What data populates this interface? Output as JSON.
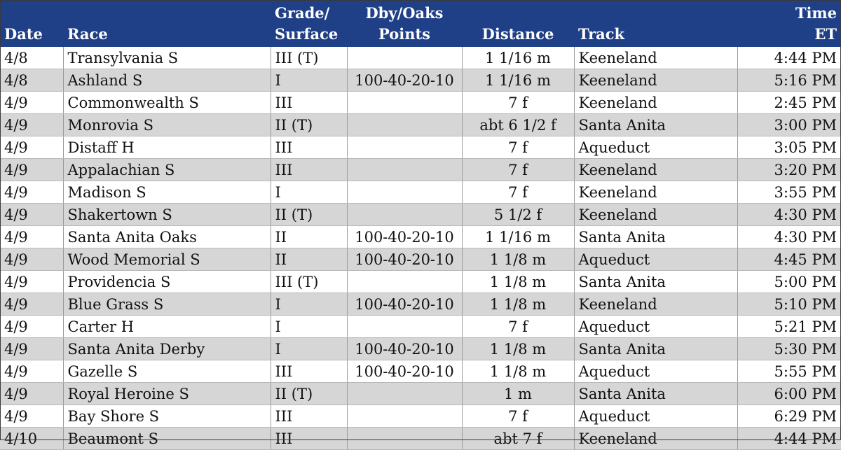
{
  "headers": {
    "date": "Date",
    "race": "Race",
    "grade_line1": "Grade/",
    "grade_line2": "Surface",
    "points_line1": "Dby/Oaks",
    "points_line2": "Points",
    "distance": "Distance",
    "track": "Track",
    "time_line1": "Time",
    "time_line2": "ET"
  },
  "rows": [
    {
      "date": "4/8",
      "race": "Transylvania S",
      "grade": "III (T)",
      "points": "",
      "distance": "1 1/16 m",
      "track": "Keeneland",
      "time": "4:44 PM"
    },
    {
      "date": "4/8",
      "race": "Ashland S",
      "grade": "I",
      "points": "100-40-20-10",
      "distance": "1 1/16 m",
      "track": "Keeneland",
      "time": "5:16 PM"
    },
    {
      "date": "4/9",
      "race": "Commonwealth S",
      "grade": "III",
      "points": "",
      "distance": "7 f",
      "track": "Keeneland",
      "time": "2:45 PM"
    },
    {
      "date": "4/9",
      "race": "Monrovia S",
      "grade": "II (T)",
      "points": "",
      "distance": "abt 6 1/2 f",
      "track": "Santa Anita",
      "time": "3:00 PM"
    },
    {
      "date": "4/9",
      "race": "Distaff H",
      "grade": "III",
      "points": "",
      "distance": "7 f",
      "track": "Aqueduct",
      "time": "3:05 PM"
    },
    {
      "date": "4/9",
      "race": "Appalachian S",
      "grade": "III",
      "points": "",
      "distance": "7 f",
      "track": "Keeneland",
      "time": "3:20 PM"
    },
    {
      "date": "4/9",
      "race": "Madison S",
      "grade": "I",
      "points": "",
      "distance": "7 f",
      "track": "Keeneland",
      "time": "3:55 PM"
    },
    {
      "date": "4/9",
      "race": "Shakertown S",
      "grade": "II (T)",
      "points": "",
      "distance": "5 1/2 f",
      "track": "Keeneland",
      "time": "4:30 PM"
    },
    {
      "date": "4/9",
      "race": "Santa Anita Oaks",
      "grade": "II",
      "points": "100-40-20-10",
      "distance": "1 1/16 m",
      "track": "Santa Anita",
      "time": "4:30 PM"
    },
    {
      "date": "4/9",
      "race": "Wood Memorial S",
      "grade": "II",
      "points": "100-40-20-10",
      "distance": "1 1/8 m",
      "track": "Aqueduct",
      "time": "4:45 PM"
    },
    {
      "date": "4/9",
      "race": "Providencia S",
      "grade": "III (T)",
      "points": "",
      "distance": "1 1/8 m",
      "track": "Santa Anita",
      "time": "5:00 PM"
    },
    {
      "date": "4/9",
      "race": "Blue Grass S",
      "grade": "I",
      "points": "100-40-20-10",
      "distance": "1 1/8 m",
      "track": "Keeneland",
      "time": "5:10 PM"
    },
    {
      "date": "4/9",
      "race": "Carter H",
      "grade": "I",
      "points": "",
      "distance": "7 f",
      "track": "Aqueduct",
      "time": "5:21 PM"
    },
    {
      "date": "4/9",
      "race": "Santa Anita Derby",
      "grade": "I",
      "points": "100-40-20-10",
      "distance": "1 1/8 m",
      "track": "Santa Anita",
      "time": "5:30 PM"
    },
    {
      "date": "4/9",
      "race": "Gazelle S",
      "grade": "III",
      "points": "100-40-20-10",
      "distance": "1 1/8 m",
      "track": "Aqueduct",
      "time": "5:55 PM"
    },
    {
      "date": "4/9",
      "race": "Royal Heroine S",
      "grade": "II (T)",
      "points": "",
      "distance": "1 m",
      "track": "Santa Anita",
      "time": "6:00 PM"
    },
    {
      "date": "4/9",
      "race": "Bay Shore S",
      "grade": "III",
      "points": "",
      "distance": "7 f",
      "track": "Aqueduct",
      "time": "6:29 PM"
    },
    {
      "date": "4/10",
      "race": "Beaumont S",
      "grade": "III",
      "points": "",
      "distance": "abt 7 f",
      "track": "Keeneland",
      "time": "4:44 PM"
    }
  ],
  "colors": {
    "header_bg": "#1f3f86",
    "header_text": "#ffffff",
    "stripe": "#d6d6d6"
  }
}
